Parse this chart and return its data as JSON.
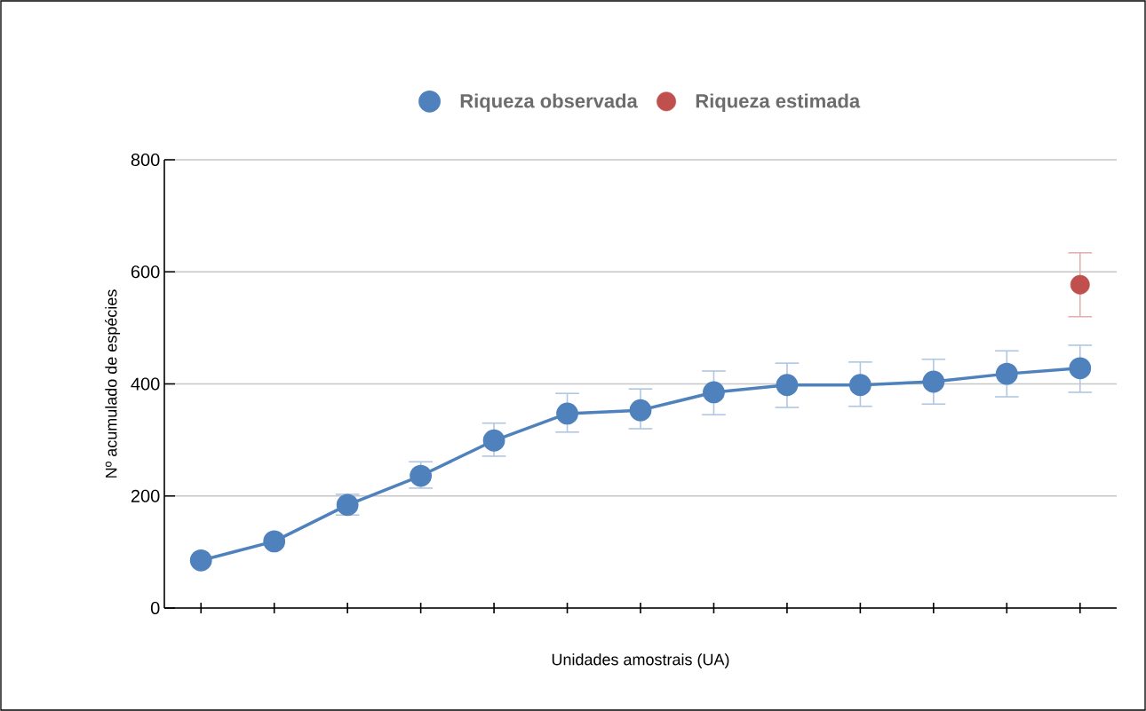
{
  "chart_data": {
    "type": "line",
    "xlabel": "Unidades amostrais (UA)",
    "ylabel": "Nº acumulado de espécies",
    "categories": [
      null,
      null,
      null,
      null,
      null,
      null,
      null,
      null,
      null,
      null,
      null,
      null,
      null
    ],
    "series": [
      {
        "name": "Riqueza observada",
        "color": "#4f81bd",
        "values": [
          85,
          119,
          184,
          236,
          299,
          347,
          353,
          385,
          398,
          398,
          404,
          418,
          428
        ],
        "errors": [
          null,
          null,
          [
            166,
            203
          ],
          [
            214,
            261
          ],
          [
            271,
            330
          ],
          [
            314,
            383
          ],
          [
            320,
            391
          ],
          [
            345,
            423
          ],
          [
            358,
            437
          ],
          [
            360,
            439
          ],
          [
            364,
            444
          ],
          [
            377,
            459
          ],
          [
            385,
            469
          ]
        ]
      },
      {
        "name": "Riqueza estimada",
        "type": "scatter",
        "color": "#c0504d",
        "values": [
          null,
          null,
          null,
          null,
          null,
          null,
          null,
          null,
          null,
          null,
          null,
          null,
          577
        ],
        "errors": [
          null,
          null,
          null,
          null,
          null,
          null,
          null,
          null,
          null,
          null,
          null,
          null,
          [
            520,
            634
          ]
        ]
      }
    ],
    "ylim": [
      0,
      800
    ],
    "yticks": [
      0,
      200,
      400,
      600,
      800
    ],
    "grid": "y",
    "legend": "top",
    "marker": "circle",
    "line_style": "solid",
    "tick_labels": "y"
  }
}
